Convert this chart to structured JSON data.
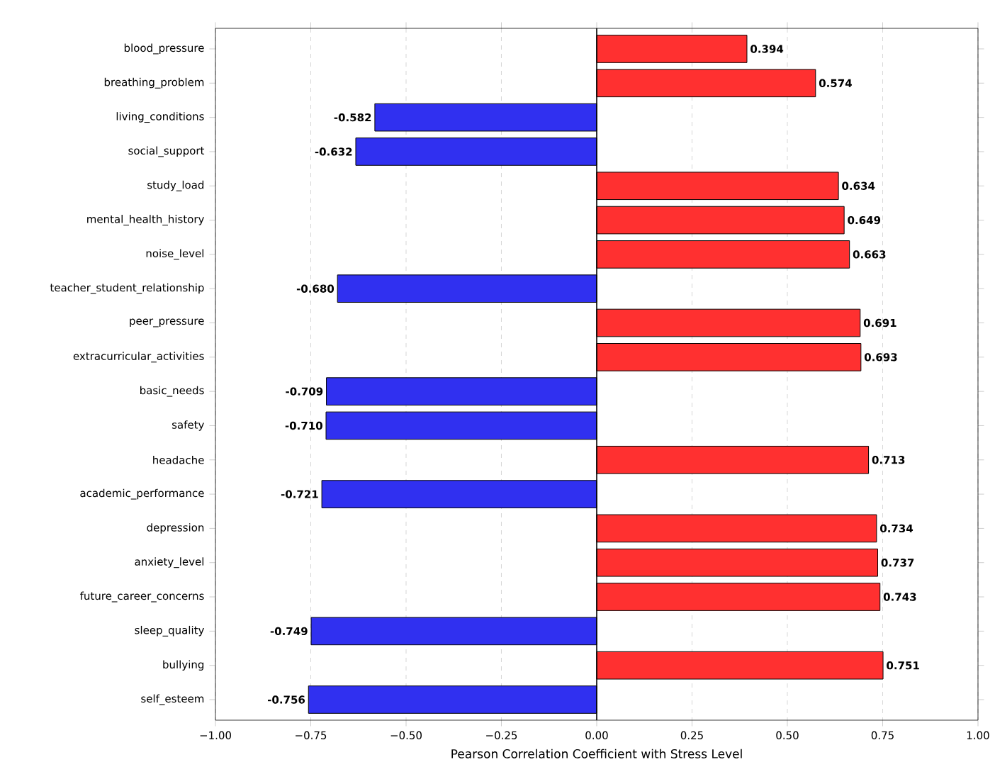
{
  "chart_data": {
    "type": "bar",
    "orientation": "horizontal",
    "xlabel": "Pearson Correlation Coefficient with Stress Level",
    "categories": [
      "blood_pressure",
      "breathing_problem",
      "living_conditions",
      "social_support",
      "study_load",
      "mental_health_history",
      "noise_level",
      "teacher_student_relationship",
      "peer_pressure",
      "extracurricular_activities",
      "basic_needs",
      "safety",
      "headache",
      "academic_performance",
      "depression",
      "anxiety_level",
      "future_career_concerns",
      "sleep_quality",
      "bullying",
      "self_esteem"
    ],
    "values": [
      0.394,
      0.574,
      -0.582,
      -0.632,
      0.634,
      0.649,
      0.663,
      -0.68,
      0.691,
      0.693,
      -0.709,
      -0.71,
      0.713,
      -0.721,
      0.734,
      0.737,
      0.743,
      -0.749,
      0.751,
      -0.756
    ],
    "value_labels": [
      "0.394",
      "0.574",
      "-0.582",
      "-0.632",
      "0.634",
      "0.649",
      "0.663",
      "-0.680",
      "0.691",
      "0.693",
      "-0.709",
      "-0.710",
      "0.713",
      "-0.721",
      "0.734",
      "0.737",
      "0.743",
      "-0.749",
      "0.751",
      "-0.756"
    ],
    "colors": [
      "#ff3030",
      "#ff3030",
      "#3030f0",
      "#3030f0",
      "#ff3030",
      "#ff3030",
      "#ff3030",
      "#3030f0",
      "#ff3030",
      "#ff3030",
      "#3030f0",
      "#3030f0",
      "#ff3030",
      "#3030f0",
      "#ff3030",
      "#ff3030",
      "#ff3030",
      "#3030f0",
      "#ff3030",
      "#3030f0"
    ],
    "xlim": [
      -1,
      1
    ],
    "xticks": [
      {
        "value": -1,
        "label": "−1.00"
      },
      {
        "value": -0.75,
        "label": "−0.75"
      },
      {
        "value": -0.5,
        "label": "−0.50"
      },
      {
        "value": -0.25,
        "label": "−0.25"
      },
      {
        "value": 0,
        "label": "0.00"
      },
      {
        "value": 0.25,
        "label": "0.25"
      },
      {
        "value": 0.5,
        "label": "0.50"
      },
      {
        "value": 0.75,
        "label": "0.75"
      },
      {
        "value": 1,
        "label": "1.00"
      }
    ],
    "grid": "x",
    "ref_lines": [
      {
        "axis": "x",
        "value": 0,
        "color": "#000000",
        "line_style": "solid"
      }
    ]
  }
}
